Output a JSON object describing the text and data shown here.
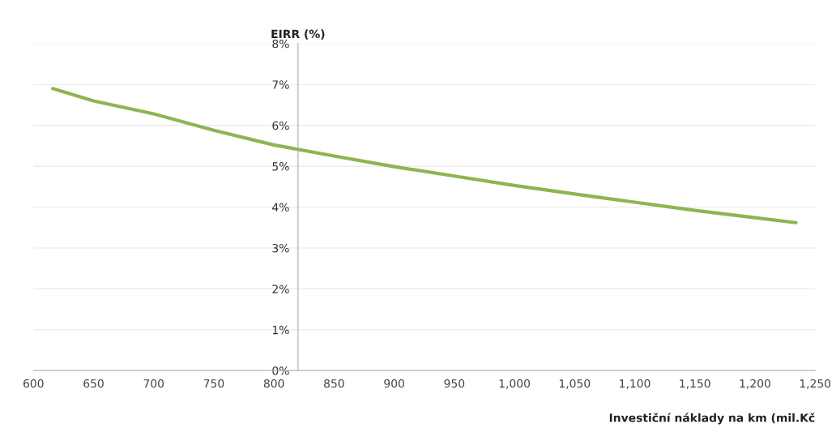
{
  "chart_data": {
    "type": "line",
    "xlabel": "Investiční náklady na km (mil.Kč",
    "ylabel": "EIRR (%)",
    "series": [
      {
        "x": [
          616,
          650,
          700,
          750,
          800,
          850,
          900,
          950,
          1000,
          1050,
          1100,
          1150,
          1200,
          1234
        ],
        "values": [
          6.9,
          6.6,
          6.28,
          5.88,
          5.52,
          5.25,
          4.99,
          4.76,
          4.53,
          4.32,
          4.12,
          3.92,
          3.74,
          3.62
        ],
        "color": "#8fb450"
      }
    ],
    "xlim": [
      600,
      1250
    ],
    "xticks": [
      600,
      650,
      700,
      750,
      800,
      850,
      900,
      950,
      {
        "value": 1000,
        "label": "1,000"
      },
      {
        "value": 1050,
        "label": "1,050"
      },
      {
        "value": 1100,
        "label": "1,100"
      },
      {
        "value": 1150,
        "label": "1,150"
      },
      {
        "value": 1200,
        "label": "1,200"
      },
      {
        "value": 1250,
        "label": "1,250"
      }
    ],
    "ylim": [
      0,
      8
    ],
    "yticks": [
      {
        "value": 0,
        "label": "0%"
      },
      {
        "value": 1,
        "label": "1%"
      },
      {
        "value": 2,
        "label": "2%"
      },
      {
        "value": 3,
        "label": "3%"
      },
      {
        "value": 4,
        "label": "4%"
      },
      {
        "value": 5,
        "label": "5%"
      },
      {
        "value": 6,
        "label": "6%"
      },
      {
        "value": 7,
        "label": "7%"
      },
      {
        "value": 8,
        "label": "8%"
      }
    ],
    "grid": "y",
    "legend": false
  }
}
